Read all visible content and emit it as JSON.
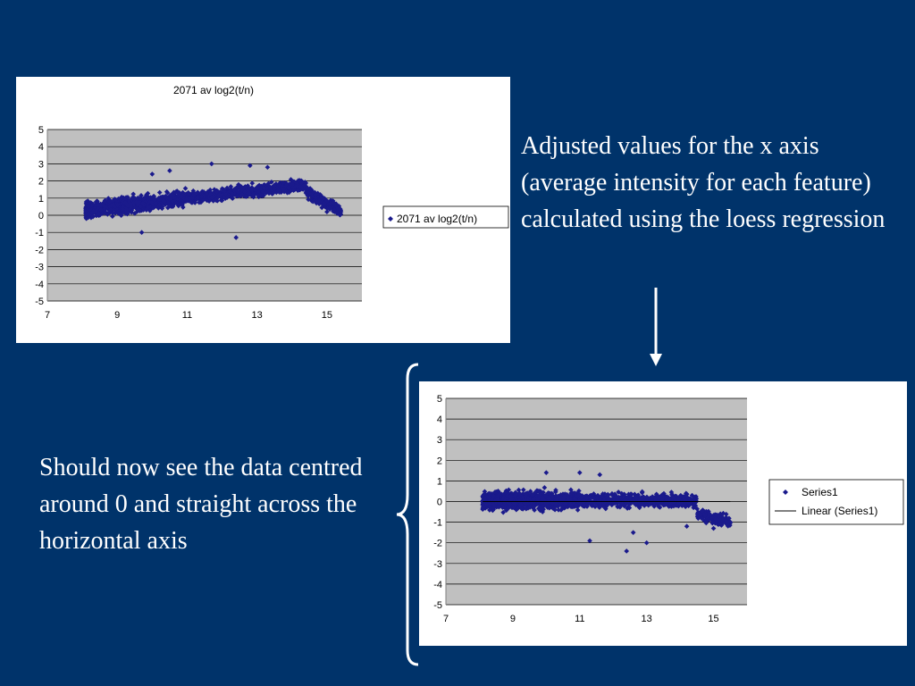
{
  "slide": {
    "text_top": "Adjusted values for the x axis (average intensity for each feature) calculated using the loess regression",
    "text_bottom": "Should now see the data centred around 0 and straight across the horizontal axis"
  },
  "colors": {
    "background": "#00336a",
    "plot_area": "#c0c0c0",
    "marker": "#1a1a8c",
    "gridline": "#000000",
    "text": "#ffffff"
  },
  "chart_data": [
    {
      "type": "scatter",
      "title": "2071 av log2(t/n)",
      "xlim": [
        7,
        16
      ],
      "ylim": [
        -5,
        5
      ],
      "x_ticks": [
        "7",
        "9",
        "11",
        "13",
        "15"
      ],
      "y_ticks": [
        "5",
        "4",
        "3",
        "2",
        "1",
        "0",
        "-1",
        "-2",
        "-3",
        "-4",
        "-5"
      ],
      "grid": true,
      "legend": "right",
      "trend": "rising from about 0.3 at x=8 to about 1.7 at x=14, dropping near 0 beyond 14.5",
      "x_range_of_points": [
        8.1,
        15.4
      ],
      "series": [
        {
          "name": "2071 av log2(t/n)",
          "marker": "diamond",
          "sample_points": [
            [
              10.0,
              2.4
            ],
            [
              10.5,
              2.6
            ],
            [
              11.7,
              3.0
            ],
            [
              12.8,
              2.9
            ],
            [
              13.3,
              2.8
            ],
            [
              12.4,
              -1.3
            ],
            [
              9.7,
              -1.0
            ],
            [
              14.6,
              0.8
            ],
            [
              15.0,
              0.2
            ],
            [
              15.4,
              0.2
            ]
          ]
        }
      ]
    },
    {
      "type": "scatter",
      "title": "",
      "xlim": [
        7,
        16
      ],
      "ylim": [
        -5,
        5
      ],
      "x_ticks": [
        "7",
        "9",
        "11",
        "13",
        "15"
      ],
      "y_ticks": [
        "5",
        "4",
        "3",
        "2",
        "1",
        "0",
        "-1",
        "-2",
        "-3",
        "-4",
        "-5"
      ],
      "grid": true,
      "legend": "right",
      "trend": "centred around 0 across the x range",
      "x_range_of_points": [
        8.1,
        15.5
      ],
      "series": [
        {
          "name": "Series1",
          "marker": "diamond",
          "sample_points": [
            [
              10.0,
              1.4
            ],
            [
              11.0,
              1.4
            ],
            [
              11.6,
              1.3
            ],
            [
              12.4,
              -2.4
            ],
            [
              12.6,
              -1.5
            ],
            [
              13.0,
              -2.0
            ],
            [
              11.3,
              -1.9
            ],
            [
              14.2,
              -1.2
            ],
            [
              15.0,
              -1.3
            ],
            [
              15.5,
              -1.0
            ]
          ]
        },
        {
          "name": "Linear (Series1)",
          "type": "line",
          "points": [
            [
              8.1,
              0.0
            ],
            [
              15.5,
              0.0
            ]
          ]
        }
      ]
    }
  ]
}
